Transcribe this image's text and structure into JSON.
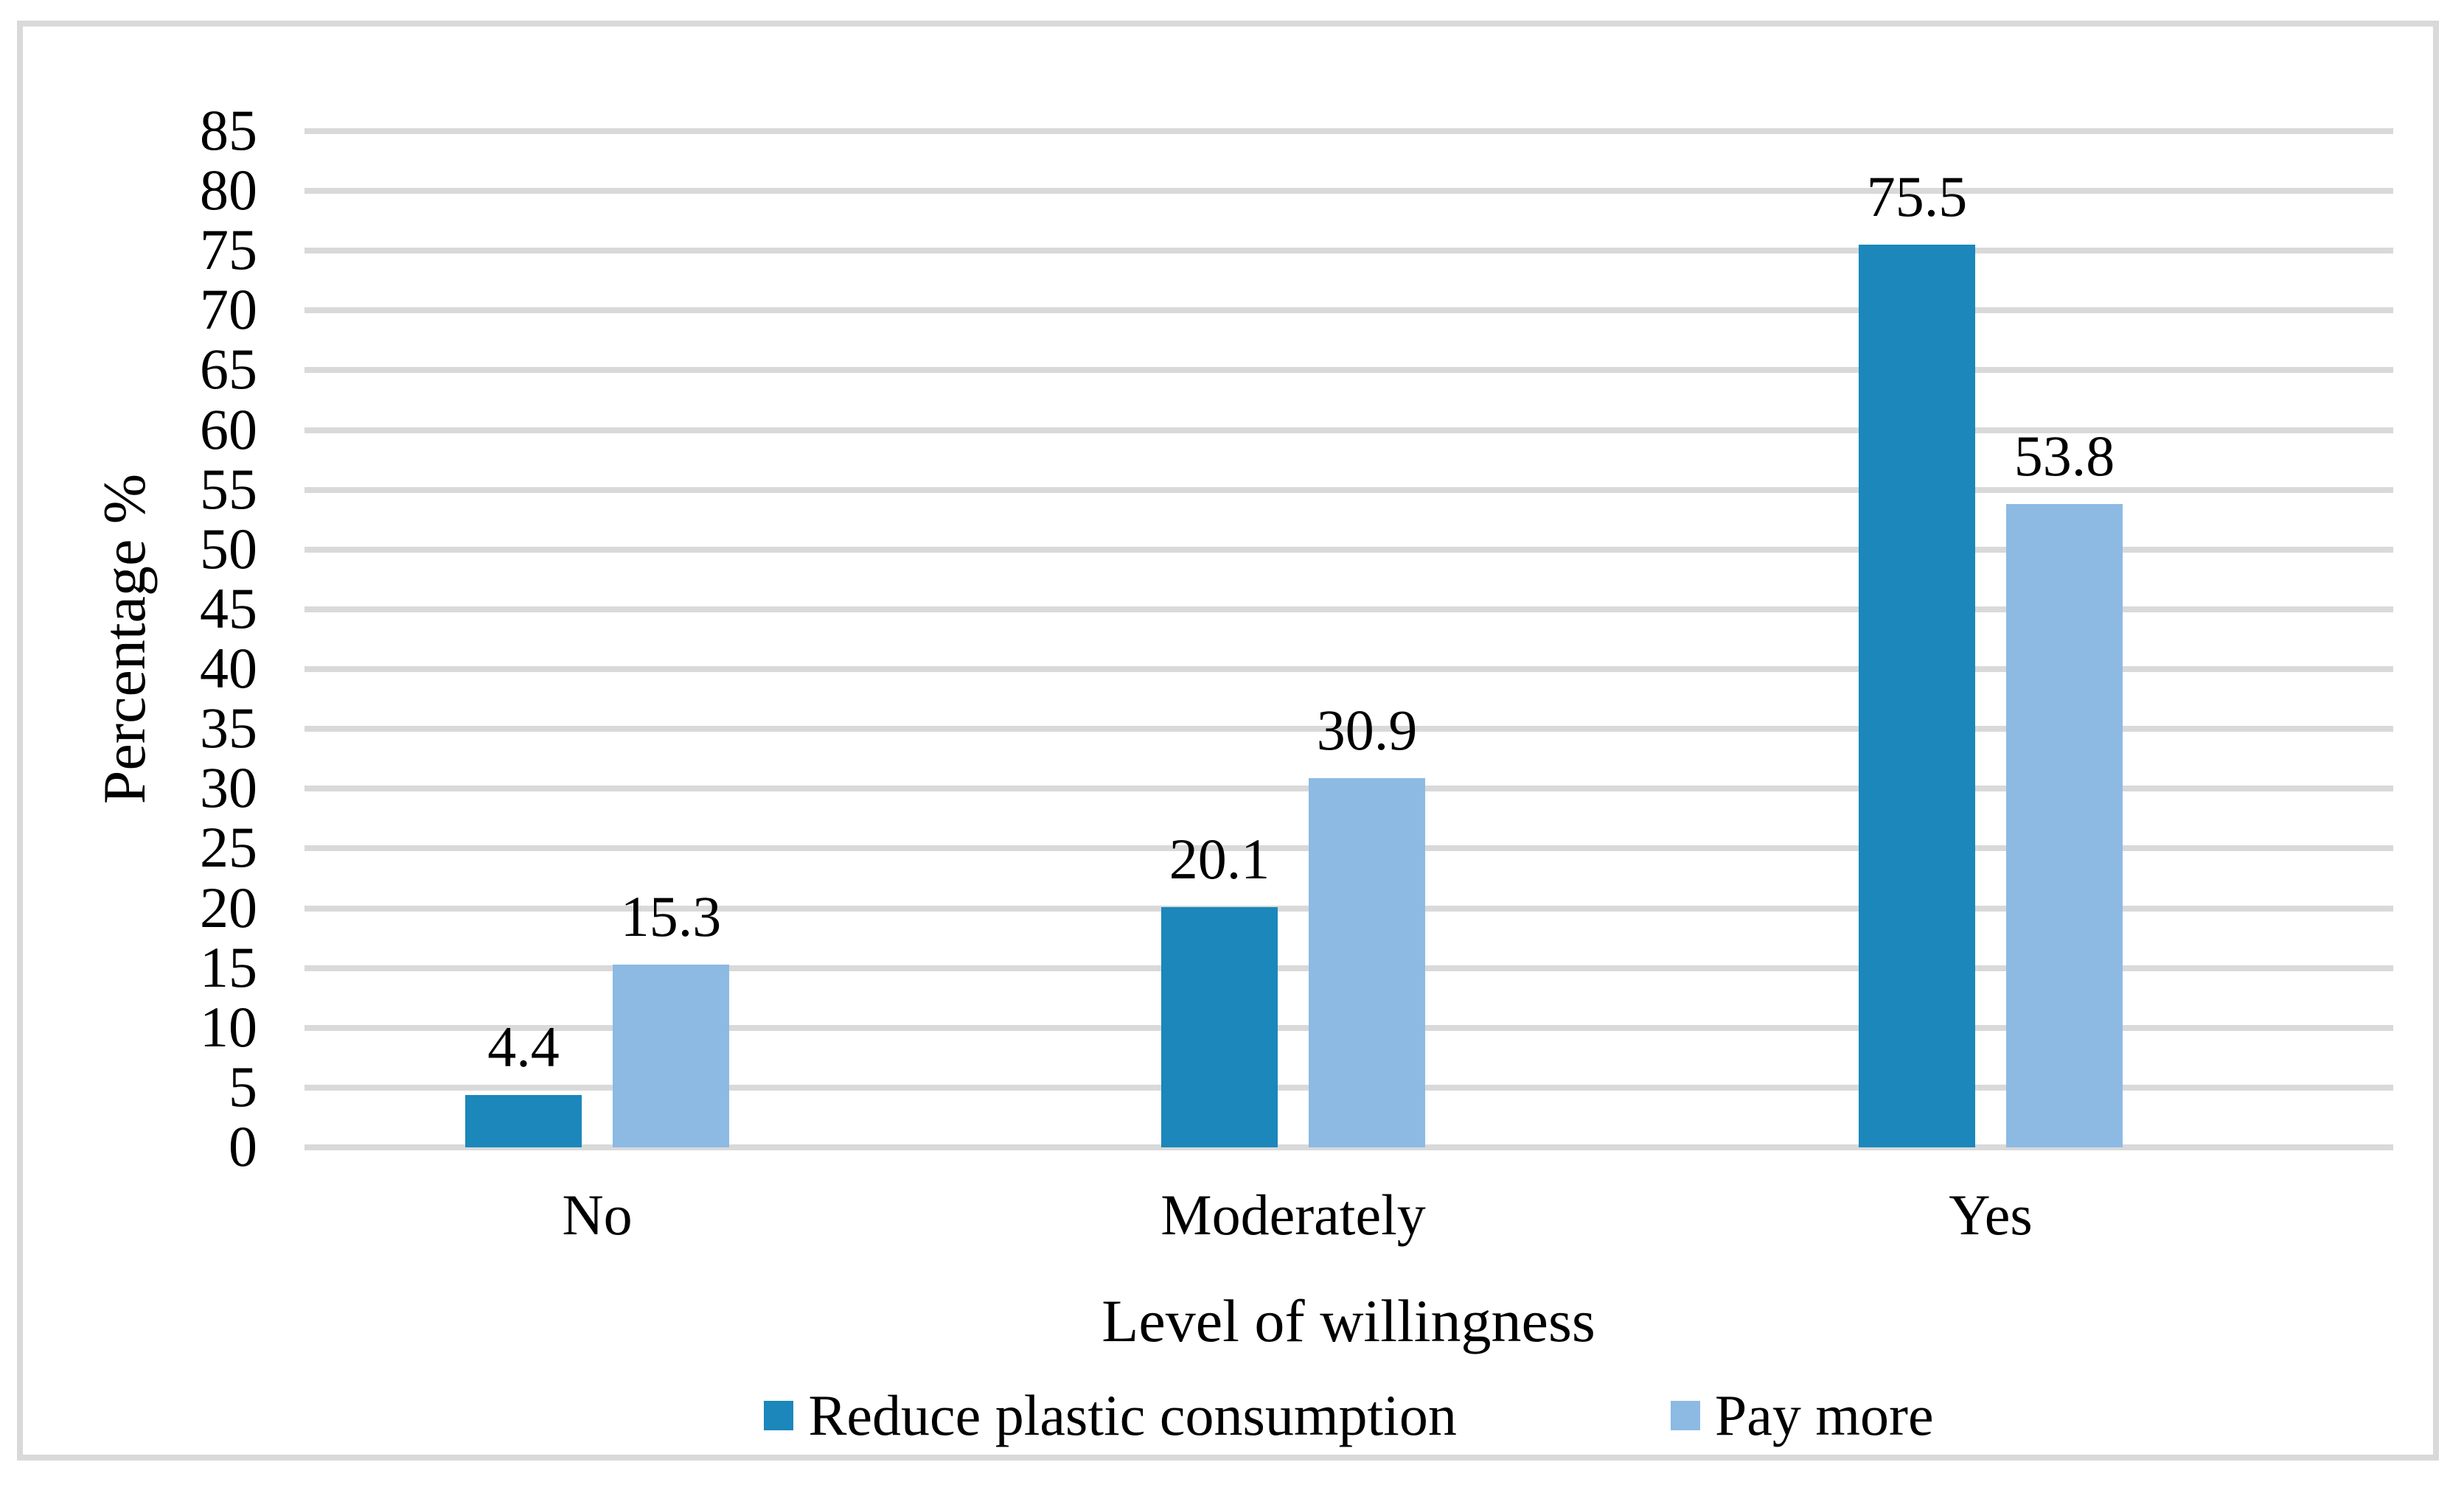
{
  "chart_data": {
    "type": "bar",
    "categories": [
      "No",
      "Moderately",
      "Yes"
    ],
    "series": [
      {
        "name": "Reduce plastic consumption",
        "color": "#1B87BA",
        "values": [
          4.4,
          20.1,
          75.5
        ]
      },
      {
        "name": "Pay more",
        "color": "#8CBAE3",
        "values": [
          15.3,
          30.9,
          53.8
        ]
      }
    ],
    "title": "",
    "xlabel": "Level of willingness",
    "ylabel": "Percentage %",
    "ylim": [
      0,
      85
    ],
    "ytick_step": 5,
    "grid": "horizontal",
    "gridline_color": "#D9D9D9",
    "frame_color": "#D9D9D9",
    "legend_position": "bottom",
    "bar_labels": true
  }
}
